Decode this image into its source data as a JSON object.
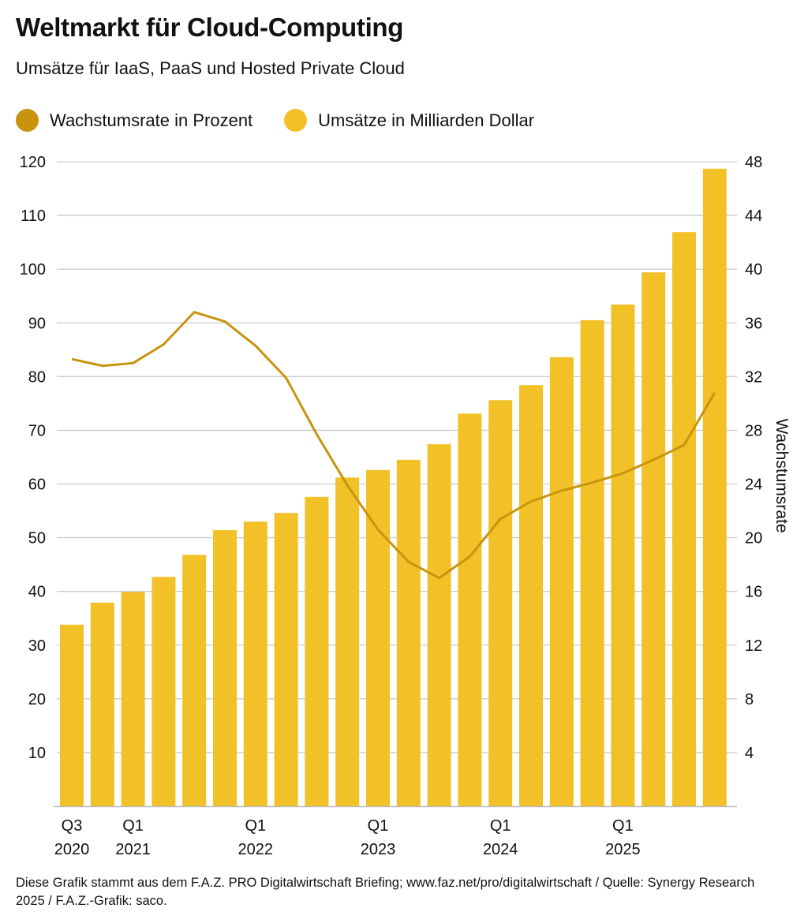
{
  "header": {
    "title": "Weltmarkt für Cloud-Computing",
    "subtitle": "Umsätze für IaaS, PaaS und Hosted Private Cloud"
  },
  "legend": [
    {
      "label": "Wachstumsrate in Prozent",
      "color": "#C8940E"
    },
    {
      "label": "Umsätze in Milliarden Dollar",
      "color": "#F2C027"
    }
  ],
  "footer": "Diese Grafik stammt aus dem F.A.Z. PRO Digitalwirtschaft Briefing; www.faz.net/pro/digitalwirtschaft / Quelle: Synergy Research 2025 / F.A.Z.-Grafik: saco.",
  "chart_data": {
    "type": "bar+line",
    "title": "Weltmarkt für Cloud-Computing",
    "subtitle": "Umsätze für IaaS, PaaS und Hosted Private Cloud",
    "categories": [
      "Q3 2020",
      "Q4 2020",
      "Q1 2021",
      "Q2 2021",
      "Q3 2021",
      "Q4 2021",
      "Q1 2022",
      "Q2 2022",
      "Q3 2022",
      "Q4 2022",
      "Q1 2023",
      "Q2 2023",
      "Q3 2023",
      "Q4 2023",
      "Q1 2024",
      "Q2 2024",
      "Q3 2024",
      "Q4 2024",
      "Q1 2025",
      "Q2 2025",
      "Q3 2025",
      "Q4 2025"
    ],
    "x_tick_labels": [
      {
        "index": 0,
        "line1": "Q3",
        "line2": "2020"
      },
      {
        "index": 2,
        "line1": "Q1",
        "line2": "2021"
      },
      {
        "index": 6,
        "line1": "Q1",
        "line2": "2022"
      },
      {
        "index": 10,
        "line1": "Q1",
        "line2": "2023"
      },
      {
        "index": 14,
        "line1": "Q1",
        "line2": "2024"
      },
      {
        "index": 18,
        "line1": "Q1",
        "line2": "2025"
      }
    ],
    "series": [
      {
        "name": "Umsätze in Milliarden Dollar",
        "type": "bar",
        "axis": "left",
        "color": "#F2C027",
        "values": [
          33.8,
          37.9,
          39.9,
          42.7,
          46.8,
          51.4,
          53.0,
          54.6,
          57.6,
          61.2,
          62.6,
          64.5,
          67.4,
          73.1,
          75.6,
          78.4,
          83.6,
          90.5,
          93.4,
          99.4,
          106.9,
          118.7
        ]
      },
      {
        "name": "Wachstumsrate in Prozent",
        "type": "line",
        "axis": "right",
        "color": "#C8940E",
        "values": [
          33.3,
          32.8,
          33.0,
          34.4,
          36.8,
          36.1,
          34.3,
          31.9,
          27.7,
          23.9,
          20.6,
          18.2,
          17.0,
          18.6,
          21.4,
          22.7,
          23.5,
          24.1,
          24.8,
          25.8,
          26.9,
          30.8
        ]
      }
    ],
    "y_left": {
      "min": 0,
      "max": 120,
      "ticks": [
        10,
        20,
        30,
        40,
        50,
        60,
        70,
        80,
        90,
        100,
        110,
        120
      ],
      "label": ""
    },
    "y_right": {
      "min": 0,
      "max": 48,
      "ticks": [
        4,
        8,
        12,
        16,
        20,
        24,
        28,
        32,
        36,
        40,
        44,
        48
      ],
      "label": "Wachstumsrate"
    },
    "grid": true,
    "legend_position": "top-left",
    "grid_color": "#CCCCCC"
  }
}
